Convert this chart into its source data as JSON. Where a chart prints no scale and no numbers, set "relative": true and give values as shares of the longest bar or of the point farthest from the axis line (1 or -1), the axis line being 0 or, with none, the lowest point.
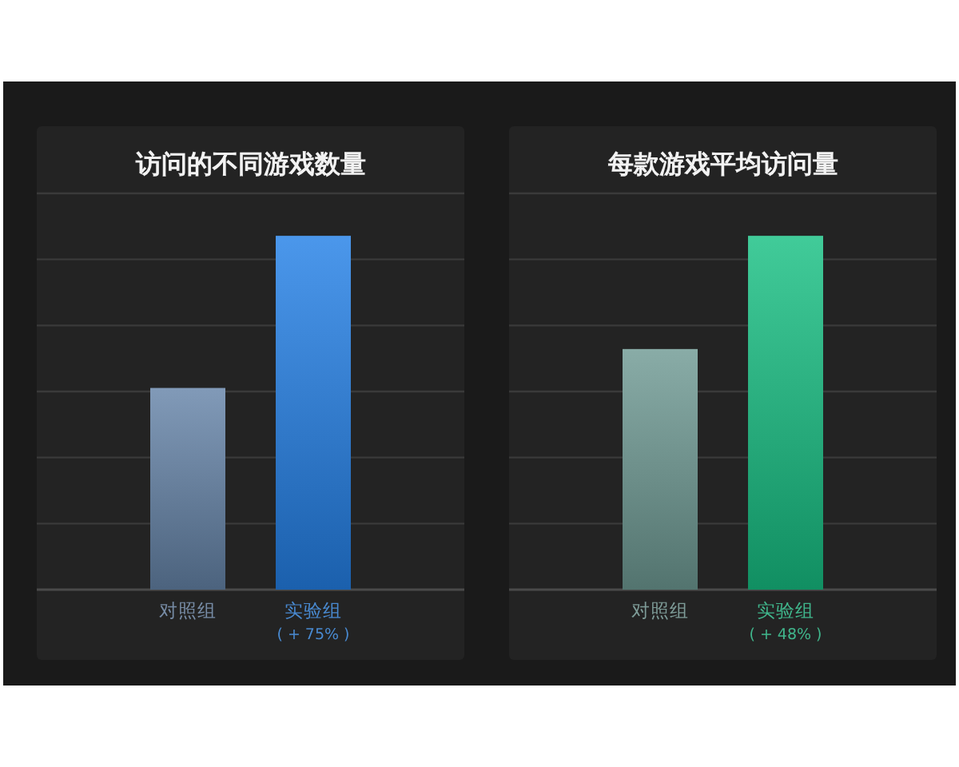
{
  "chart_data": [
    {
      "type": "bar",
      "title": "访问的不同游戏数量",
      "categories": [
        "对照组",
        "实验组"
      ],
      "values": [
        0.57,
        1
      ],
      "colors": [
        "#6584a8",
        "#2480e6"
      ],
      "relative": true,
      "grid": "y",
      "annotations": [
        "( + 75% )"
      ]
    },
    {
      "type": "bar",
      "title": "每款游戏平均访问量",
      "categories": [
        "对照组",
        "实验组"
      ],
      "values": [
        0.68,
        1
      ],
      "colors": [
        "#6f9a94",
        "#17bf83"
      ],
      "relative": true,
      "grid": "y",
      "annotations": [
        "( + 48% )"
      ]
    }
  ]
}
